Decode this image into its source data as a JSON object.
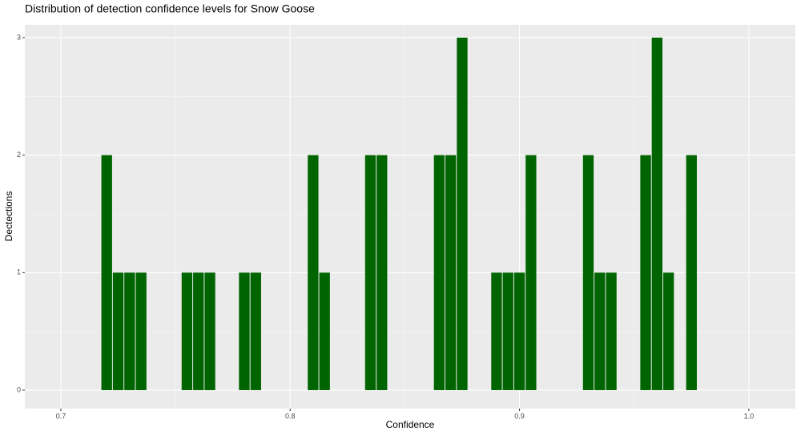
{
  "chart_data": {
    "type": "histogram",
    "title": "Distribution of detection confidence levels for Snow Goose",
    "x_label": "Confidence",
    "y_label": "Dectections",
    "bins": [
      0.7175,
      0.7225,
      0.7275,
      0.7325,
      0.7375,
      0.7425,
      0.7475,
      0.7525,
      0.7575,
      0.7625,
      0.7675,
      0.7725,
      0.7775,
      0.7825,
      0.7875,
      0.7925,
      0.7975,
      0.8025,
      0.8075,
      0.8125,
      0.8175,
      0.8225,
      0.8275,
      0.8325,
      0.8375,
      0.8425,
      0.8475,
      0.8525,
      0.8575,
      0.8625,
      0.8675,
      0.8725,
      0.8775,
      0.8825,
      0.8875,
      0.8925,
      0.8975,
      0.9025,
      0.9075,
      0.9125,
      0.9175,
      0.9225,
      0.9275,
      0.9325,
      0.9375,
      0.9425,
      0.9475,
      0.9525,
      0.9575,
      0.9625,
      0.9675,
      0.9725,
      0.9775
    ],
    "values": [
      2,
      1,
      1,
      1,
      0,
      0,
      0,
      1,
      1,
      1,
      0,
      0,
      1,
      1,
      0,
      0,
      0,
      0,
      2,
      1,
      0,
      0,
      0,
      2,
      2,
      0,
      0,
      0,
      0,
      2,
      2,
      3,
      0,
      0,
      1,
      1,
      1,
      2,
      0,
      0,
      0,
      0,
      2,
      1,
      1,
      0,
      0,
      2,
      3,
      1,
      0,
      2
    ],
    "color": "#006400",
    "xlim": [
      0.6843,
      1.0203
    ],
    "xticks": [
      0.7,
      0.8,
      0.9,
      {
        "value": 1.0,
        "label": "1.0"
      }
    ],
    "ylim": [
      -0.157,
      3.109
    ],
    "yticks": [
      0,
      1,
      2,
      3
    ],
    "grid": true
  }
}
